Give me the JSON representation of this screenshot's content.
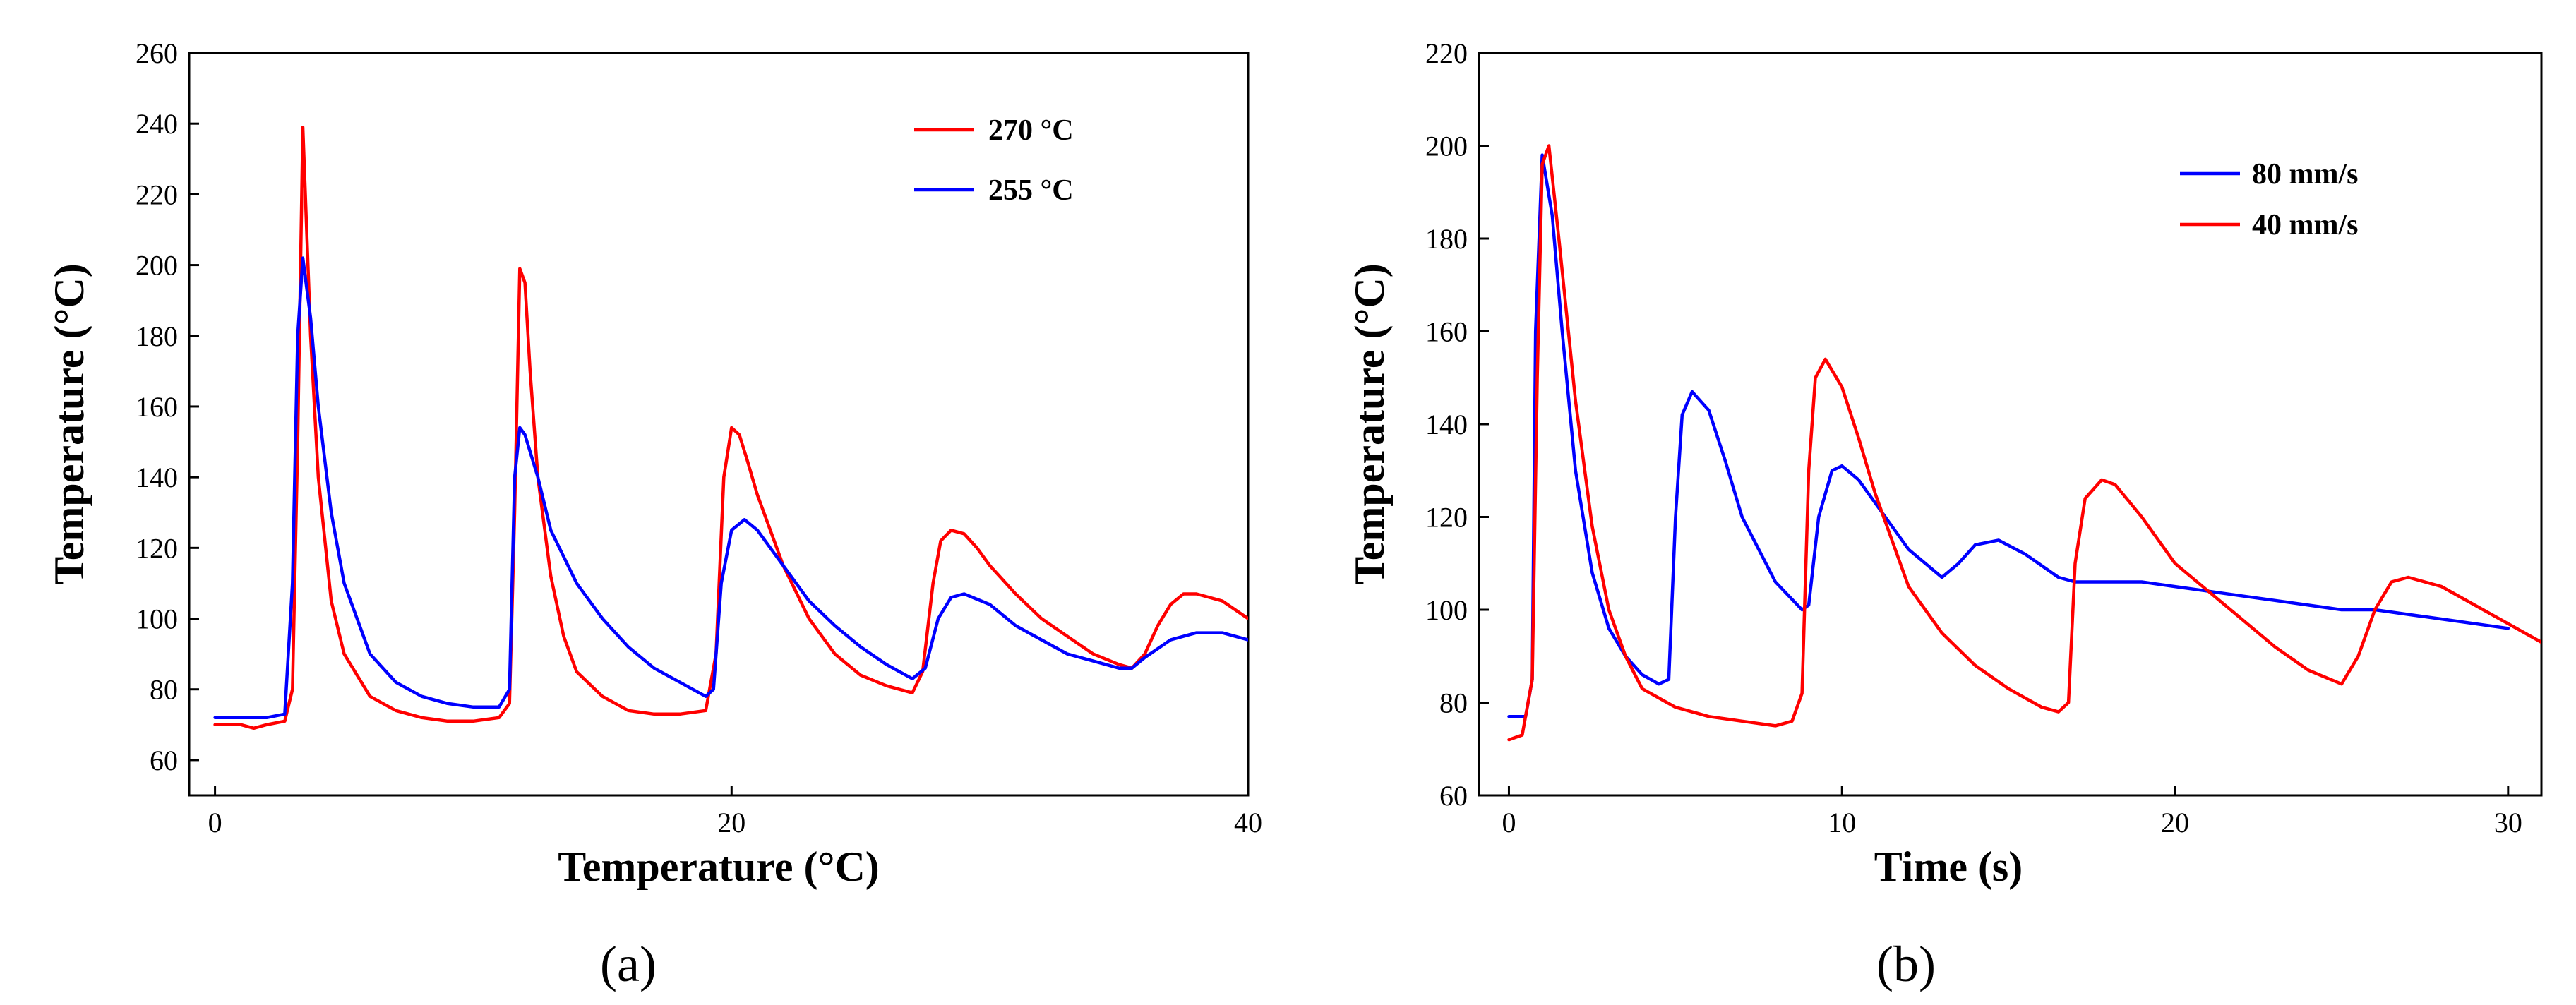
{
  "chart_data": [
    {
      "type": "line",
      "panel_label": "(a)",
      "xlabel": "Temperature (°C)",
      "ylabel": "Temperature (°C)",
      "xlim": [
        -1,
        40
      ],
      "ylim": [
        50,
        260
      ],
      "xticks": [
        0,
        20,
        40
      ],
      "yticks": [
        60,
        80,
        100,
        120,
        140,
        160,
        180,
        200,
        220,
        240,
        260
      ],
      "legend_position": "top-right",
      "series": [
        {
          "name": "270 °C",
          "color": "#ff0000",
          "x": [
            0,
            1,
            1.5,
            2,
            2.7,
            3.0,
            3.2,
            3.4,
            3.7,
            4.0,
            4.5,
            5.0,
            6.0,
            7.0,
            8.0,
            9.0,
            10.0,
            11.0,
            11.4,
            11.6,
            11.8,
            12.0,
            12.2,
            12.5,
            13.0,
            13.5,
            14.0,
            15.0,
            16.0,
            17.0,
            18.0,
            19.0,
            19.4,
            19.7,
            20.0,
            20.3,
            20.6,
            21.0,
            22.0,
            23.0,
            24.0,
            25.0,
            26.0,
            27.0,
            27.4,
            27.8,
            28.1,
            28.5,
            29.0,
            29.5,
            30.0,
            31.0,
            32.0,
            33.0,
            34.0,
            35.0,
            35.5,
            36.0,
            36.5,
            37.0,
            37.5,
            38.0,
            39.0,
            40.0
          ],
          "y": [
            70,
            70,
            69,
            70,
            71,
            80,
            150,
            239,
            180,
            140,
            105,
            90,
            78,
            74,
            72,
            71,
            71,
            72,
            76,
            130,
            199,
            195,
            170,
            140,
            112,
            95,
            85,
            78,
            74,
            73,
            73,
            74,
            90,
            140,
            154,
            152,
            145,
            135,
            115,
            100,
            90,
            84,
            81,
            79,
            85,
            110,
            122,
            125,
            124,
            120,
            115,
            107,
            100,
            95,
            90,
            87,
            86,
            90,
            98,
            104,
            107,
            107,
            105,
            100
          ]
        },
        {
          "name": "255 °C",
          "color": "#0000ff",
          "x": [
            0,
            1,
            2,
            2.7,
            3.0,
            3.2,
            3.4,
            3.7,
            4.0,
            4.5,
            5.0,
            6.0,
            7.0,
            8.0,
            9.0,
            10.0,
            11.0,
            11.4,
            11.6,
            11.8,
            12.0,
            12.5,
            13.0,
            14.0,
            15.0,
            16.0,
            17.0,
            18.0,
            19.0,
            19.3,
            19.6,
            20.0,
            20.5,
            21.0,
            22.0,
            23.0,
            24.0,
            25.0,
            26.0,
            27.0,
            27.5,
            28.0,
            28.5,
            29.0,
            30.0,
            31.0,
            32.0,
            33.0,
            34.0,
            35.0,
            35.5,
            36.0,
            37.0,
            38.0,
            39.0,
            40.0
          ],
          "y": [
            72,
            72,
            72,
            73,
            110,
            180,
            202,
            185,
            160,
            130,
            110,
            90,
            82,
            78,
            76,
            75,
            75,
            80,
            140,
            154,
            152,
            140,
            125,
            110,
            100,
            92,
            86,
            82,
            78,
            80,
            110,
            125,
            128,
            125,
            115,
            105,
            98,
            92,
            87,
            83,
            86,
            100,
            106,
            107,
            104,
            98,
            94,
            90,
            88,
            86,
            86,
            89,
            94,
            96,
            96,
            94
          ]
        }
      ]
    },
    {
      "type": "line",
      "panel_label": "(b)",
      "xlabel": "Time (s)",
      "ylabel": "Temperature (°C)",
      "xlim": [
        -0.9,
        31
      ],
      "ylim": [
        60,
        220
      ],
      "xticks": [
        0,
        10,
        20,
        30
      ],
      "yticks": [
        60,
        80,
        100,
        120,
        140,
        160,
        180,
        200,
        220
      ],
      "legend_position": "top-right",
      "series": [
        {
          "name": "80 mm/s",
          "color": "#0000ff",
          "x": [
            0,
            0.5,
            0.7,
            0.8,
            1.0,
            1.3,
            1.6,
            2.0,
            2.5,
            3.0,
            3.5,
            4.0,
            4.5,
            4.8,
            5.0,
            5.2,
            5.5,
            6.0,
            6.5,
            7.0,
            8.0,
            8.8,
            9.0,
            9.3,
            9.7,
            10.0,
            10.5,
            11.0,
            12.0,
            13.0,
            13.5,
            14.0,
            14.7,
            15.5,
            16.5,
            17.0,
            18.0,
            19.0,
            20.0,
            21.0,
            22.0,
            23.0,
            24.0,
            25.0,
            26.0,
            27.0,
            28.0,
            29.0,
            30.0
          ],
          "y": [
            77,
            77,
            85,
            160,
            198,
            185,
            160,
            130,
            108,
            96,
            90,
            86,
            84,
            85,
            120,
            142,
            147,
            143,
            132,
            120,
            106,
            100,
            101,
            120,
            130,
            131,
            128,
            123,
            113,
            107,
            110,
            114,
            115,
            112,
            107,
            106,
            106,
            106,
            105,
            104,
            103,
            102,
            101,
            100,
            100,
            99,
            98,
            97,
            96
          ]
        },
        {
          "name": "40 mm/s",
          "color": "#ff0000",
          "x": [
            0,
            0.4,
            0.7,
            0.85,
            1.0,
            1.2,
            1.5,
            2.0,
            2.5,
            3.0,
            3.5,
            4.0,
            5.0,
            6.0,
            7.0,
            8.0,
            8.5,
            8.8,
            9.0,
            9.2,
            9.5,
            10.0,
            10.5,
            11.0,
            12.0,
            13.0,
            14.0,
            15.0,
            16.0,
            16.5,
            16.8,
            17.0,
            17.3,
            17.8,
            18.2,
            19.0,
            20.0,
            21.0,
            22.0,
            23.0,
            24.0,
            25.0,
            25.5,
            26.0,
            26.5,
            27.0,
            28.0,
            29.0,
            30.0,
            31.0
          ],
          "y": [
            72,
            73,
            85,
            150,
            196,
            200,
            180,
            145,
            118,
            100,
            90,
            83,
            79,
            77,
            76,
            75,
            76,
            82,
            130,
            150,
            154,
            148,
            137,
            125,
            105,
            95,
            88,
            83,
            79,
            78,
            80,
            110,
            124,
            128,
            127,
            120,
            110,
            104,
            98,
            92,
            87,
            84,
            90,
            100,
            106,
            107,
            105,
            101,
            97,
            93
          ]
        }
      ]
    }
  ]
}
